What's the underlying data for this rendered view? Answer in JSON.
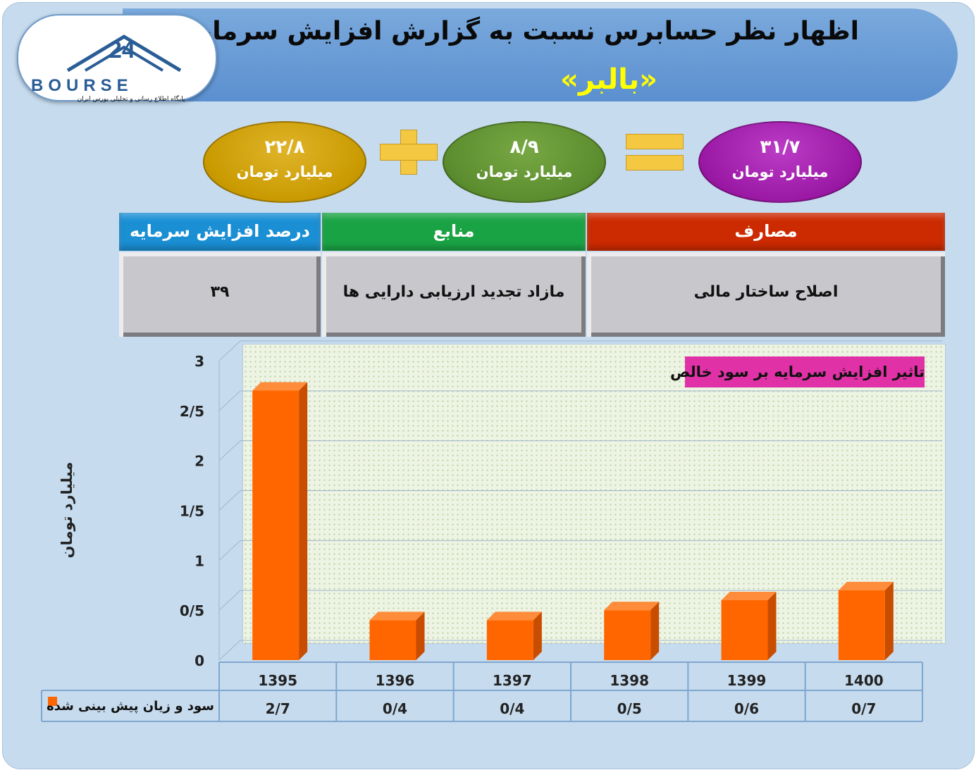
{
  "title": {
    "line1": "اظهار نظر حسابرس نسبت به گزارش افزایش سرمایه",
    "line2": "«بالبر»"
  },
  "logo": {
    "word": "BOURSE",
    "subtitle": "پایگاه اطلاع رسانی و تحلیلی بورس ایران"
  },
  "equation": {
    "left": {
      "value": "۲۲/۸",
      "unit": "میلیارد تومان",
      "color": "#c99a00"
    },
    "middle": {
      "value": "۸/۹",
      "unit": "میلیارد تومان",
      "color": "#5b8c2e"
    },
    "right": {
      "value": "۳۱/۷",
      "unit": "میلیارد تومان",
      "color": "#9a18a4"
    },
    "plus_icon": "plus-icon",
    "equals_icon": "equals-icon",
    "operator_color": "#f5c842"
  },
  "table": {
    "headers": {
      "percent": "درصد افزایش سرمایه",
      "sources": "منابع",
      "uses": "مصارف"
    },
    "values": {
      "percent": "۳۹",
      "sources": "مازاد تجدید ارزیابی دارایی ها",
      "uses": "اصلاح ساختار مالی"
    },
    "header_colors": {
      "percent": "#1a8fd4",
      "sources": "#1aa344",
      "uses": "#cc2a00"
    }
  },
  "chart_data": {
    "type": "bar",
    "title": "تاثیر افزایش سرمایه بر سود خالص",
    "ylabel": "میلیارد تومان",
    "xlabel": "",
    "categories": [
      "1395",
      "1396",
      "1397",
      "1398",
      "1399",
      "1400"
    ],
    "series": [
      {
        "name": "سود و زیان پیش بینی شده",
        "values": [
          2.7,
          0.4,
          0.4,
          0.5,
          0.6,
          0.7
        ],
        "labels": [
          "2/7",
          "0/4",
          "0/4",
          "0/5",
          "0/6",
          "0/7"
        ],
        "color": "#ff6600"
      }
    ],
    "ylim": [
      0,
      3
    ],
    "yticks": [
      0,
      0.5,
      1,
      1.5,
      2,
      2.5,
      3
    ],
    "ytick_labels": [
      "0",
      "0/5",
      "1",
      "1/5",
      "2",
      "2/5",
      "3"
    ],
    "grid": true,
    "legend": "data-table-left",
    "note_color": "#e032a6"
  }
}
